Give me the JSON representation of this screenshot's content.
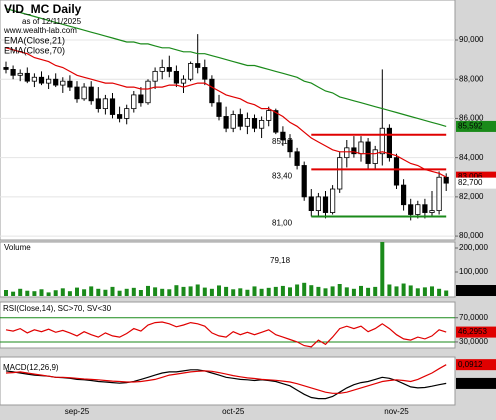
{
  "chart_data": [
    {
      "type": "candlestick",
      "title": "VID_MC Daily",
      "subtitle": "as of 12/11/2025",
      "source": "www.wealth-lab.com",
      "categories": [
        null,
        null,
        null,
        null,
        null,
        null,
        null,
        null,
        null,
        null,
        "sep-25",
        null,
        null,
        null,
        null,
        null,
        null,
        null,
        null,
        null,
        null,
        null,
        null,
        null,
        null,
        null,
        null,
        null,
        null,
        null,
        null,
        null,
        "oct-25",
        null,
        null,
        null,
        null,
        null,
        null,
        null,
        null,
        null,
        null,
        null,
        null,
        null,
        null,
        null,
        null,
        null,
        null,
        null,
        null,
        null,
        null,
        "nov-25",
        null,
        null,
        null,
        null,
        null,
        null,
        null
      ],
      "open": [
        88.6,
        88.5,
        88.2,
        88.3,
        87.9,
        88.1,
        87.8,
        88.0,
        87.7,
        87.9,
        87.6,
        87.0,
        87.6,
        87.0,
        86.5,
        87.0,
        86.2,
        86.0,
        86.5,
        87.2,
        86.8,
        87.9,
        88.4,
        88.6,
        88.4,
        87.8,
        88.0,
        88.8,
        88.6,
        88.0,
        86.8,
        86.1,
        85.5,
        86.2,
        85.6,
        86.0,
        85.5,
        85.9,
        86.4,
        85.3,
        84.9,
        84.3,
        83.6,
        82.0,
        81.3,
        82.0,
        81.2,
        82.4,
        84.0,
        84.5,
        84.2,
        84.8,
        83.7,
        84.2,
        85.5,
        84.0,
        82.6,
        81.6,
        81.1,
        81.6,
        81.2,
        81.3,
        83.0
      ],
      "high": [
        88.9,
        88.7,
        88.5,
        88.6,
        88.3,
        88.4,
        88.2,
        88.3,
        88.1,
        88.2,
        87.9,
        87.8,
        87.9,
        87.6,
        87.2,
        87.3,
        86.6,
        86.7,
        87.4,
        87.6,
        88.0,
        88.6,
        89.0,
        89.2,
        88.7,
        88.2,
        88.9,
        90.3,
        89.0,
        88.2,
        87.2,
        86.6,
        86.4,
        86.5,
        86.3,
        86.2,
        86.1,
        86.6,
        86.5,
        85.6,
        85.2,
        84.5,
        83.8,
        82.4,
        82.2,
        82.3,
        82.6,
        84.3,
        84.9,
        85.1,
        85.1,
        85.0,
        84.6,
        88.5,
        85.7,
        84.2,
        82.9,
        81.9,
        81.8,
        81.9,
        82.3,
        83.3,
        83.2
      ],
      "low": [
        88.3,
        88.0,
        87.9,
        87.8,
        87.6,
        87.7,
        87.5,
        87.6,
        87.3,
        87.4,
        86.8,
        86.9,
        86.7,
        86.3,
        86.2,
        86.0,
        85.8,
        85.7,
        86.3,
        86.6,
        86.7,
        87.5,
        88.0,
        88.1,
        87.6,
        87.3,
        87.9,
        88.3,
        87.7,
        86.6,
        85.9,
        85.3,
        85.3,
        85.4,
        85.2,
        85.3,
        85.0,
        85.6,
        85.2,
        84.6,
        84.0,
        83.4,
        81.8,
        81.0,
        81.0,
        80.9,
        81.1,
        82.2,
        83.5,
        84.0,
        83.8,
        83.4,
        83.4,
        83.6,
        83.8,
        82.4,
        81.3,
        80.8,
        80.9,
        80.9,
        81.0,
        81.1,
        82.3
      ],
      "close": [
        88.5,
        88.2,
        88.3,
        87.9,
        88.1,
        87.8,
        88.0,
        87.7,
        87.9,
        87.6,
        87.0,
        87.6,
        86.9,
        86.5,
        87.0,
        86.2,
        86.0,
        86.5,
        87.2,
        86.8,
        87.9,
        88.4,
        88.6,
        88.4,
        87.8,
        88.0,
        88.8,
        88.6,
        88.0,
        86.8,
        86.1,
        85.5,
        86.2,
        85.6,
        86.0,
        85.5,
        85.9,
        86.4,
        85.3,
        84.9,
        84.3,
        83.6,
        82.0,
        81.3,
        82.0,
        81.2,
        82.4,
        84.0,
        84.5,
        84.2,
        84.8,
        83.7,
        84.4,
        85.5,
        84.0,
        82.6,
        81.6,
        81.1,
        81.6,
        81.2,
        81.3,
        83.0,
        82.7
      ],
      "close_label": "82,700",
      "series": [
        {
          "name": "EMA(Close,21)",
          "color": "#e00000",
          "last_label": "83,006",
          "values": [
            89.6,
            89.5,
            89.4,
            89.3,
            89.1,
            89.0,
            88.9,
            88.7,
            88.6,
            88.4,
            88.2,
            88.1,
            88.0,
            87.9,
            87.8,
            87.8,
            87.7,
            87.6,
            87.6,
            87.5,
            87.5,
            87.6,
            87.6,
            87.7,
            87.7,
            87.6,
            87.7,
            87.8,
            87.8,
            87.6,
            87.4,
            87.2,
            87.1,
            87.0,
            86.8,
            86.7,
            86.5,
            86.5,
            86.3,
            86.1,
            85.8,
            85.6,
            85.3,
            85.0,
            84.8,
            84.6,
            84.4,
            84.3,
            84.3,
            84.3,
            84.2,
            84.2,
            84.2,
            84.3,
            84.2,
            84.1,
            83.9,
            83.7,
            83.6,
            83.4,
            83.3,
            83.2,
            83.006
          ]
        },
        {
          "name": "EMA(Close,70)",
          "color": "#1a8a1a",
          "last_label": "85,592",
          "values": [
            91.6,
            91.5,
            91.4,
            91.3,
            91.2,
            91.1,
            91.0,
            90.9,
            90.8,
            90.7,
            90.6,
            90.5,
            90.4,
            90.3,
            90.2,
            90.1,
            90.0,
            89.9,
            89.9,
            89.8,
            89.8,
            89.7,
            89.6,
            89.6,
            89.5,
            89.4,
            89.4,
            89.3,
            89.3,
            89.2,
            89.1,
            89.0,
            88.9,
            88.8,
            88.7,
            88.7,
            88.6,
            88.5,
            88.4,
            88.3,
            88.2,
            88.1,
            87.9,
            87.8,
            87.6,
            87.4,
            87.3,
            87.1,
            87.0,
            86.9,
            86.8,
            86.7,
            86.6,
            86.5,
            86.4,
            86.3,
            86.2,
            86.1,
            86.0,
            85.9,
            85.8,
            85.7,
            85.592
          ]
        }
      ],
      "levels": [
        {
          "value": 85.17,
          "label": "85,17",
          "color": "#e00000"
        },
        {
          "value": 83.4,
          "label": "83,40",
          "color": "#e00000"
        },
        {
          "value": 81.0,
          "label": "81,00",
          "color": "#1a8a1a"
        }
      ],
      "ylim": [
        79.8,
        92.04
      ],
      "yticks": [
        {
          "value": 80,
          "label": "80,000"
        },
        {
          "value": 82,
          "label": "82,000"
        },
        {
          "value": 84,
          "label": "84,000"
        },
        {
          "value": 86,
          "label": "86,000"
        },
        {
          "value": 88,
          "label": "88,000"
        },
        {
          "value": 90,
          "label": "90,000"
        }
      ],
      "grid": true
    },
    {
      "type": "bar",
      "title": "Volume",
      "color": "#1a8a1a",
      "annotation": "79,18",
      "last_label": "22,867",
      "values": [
        25000,
        18000,
        30000,
        22000,
        20000,
        28000,
        15000,
        24000,
        32000,
        20000,
        35000,
        28000,
        40000,
        30000,
        26000,
        38000,
        22000,
        30000,
        34000,
        25000,
        42000,
        36000,
        30000,
        28000,
        45000,
        38000,
        40000,
        48000,
        35000,
        30000,
        44000,
        38000,
        28000,
        32000,
        26000,
        40000,
        30000,
        34000,
        38000,
        42000,
        36000,
        48000,
        55000,
        45000,
        38000,
        32000,
        40000,
        50000,
        36000,
        30000,
        42000,
        34000,
        38000,
        225000,
        48000,
        40000,
        52000,
        44000,
        32000,
        36000,
        40000,
        30000,
        22867
      ],
      "ylim": [
        0,
        225000
      ],
      "yticks": [
        {
          "value": 100000,
          "label": "100,000"
        },
        {
          "value": 200000,
          "label": "200,000"
        }
      ]
    },
    {
      "type": "line",
      "title": "RSI(Close,14), SC>70, SV<30",
      "reference_color": "#1a8a1a",
      "series": [
        {
          "color": "#e00000",
          "last_label": "46,2953",
          "values": [
            50,
            48,
            52,
            45,
            50,
            47,
            51,
            46,
            49,
            45,
            40,
            47,
            42,
            38,
            45,
            40,
            38,
            44,
            52,
            48,
            58,
            62,
            63,
            60,
            55,
            58,
            62,
            60,
            56,
            45,
            40,
            38,
            47,
            42,
            46,
            42,
            46,
            50,
            42,
            38,
            34,
            30,
            24,
            22,
            33,
            26,
            38,
            52,
            56,
            52,
            56,
            47,
            52,
            60,
            52,
            42,
            35,
            33,
            38,
            35,
            40,
            50,
            46.2953
          ]
        }
      ],
      "ylim": [
        20,
        96
      ],
      "yticks": [
        {
          "value": 70,
          "label": "70,0000"
        },
        {
          "value": 30,
          "label": "30,0000"
        }
      ]
    },
    {
      "type": "line",
      "title": "MACD(12,26,9)",
      "series": [
        {
          "color": "#000000",
          "last_label": "-0,7887",
          "values": [
            -0.2,
            -0.25,
            -0.3,
            -0.35,
            -0.4,
            -0.42,
            -0.45,
            -0.5,
            -0.52,
            -0.55,
            -0.6,
            -0.62,
            -0.65,
            -0.7,
            -0.72,
            -0.75,
            -0.78,
            -0.75,
            -0.7,
            -0.6,
            -0.5,
            -0.4,
            -0.3,
            -0.25,
            -0.25,
            -0.2,
            -0.15,
            -0.15,
            -0.2,
            -0.3,
            -0.4,
            -0.5,
            -0.55,
            -0.6,
            -0.62,
            -0.65,
            -0.62,
            -0.65,
            -0.7,
            -0.8,
            -0.9,
            -1.1,
            -1.3,
            -1.45,
            -1.5,
            -1.5,
            -1.4,
            -1.2,
            -1.0,
            -0.85,
            -0.75,
            -0.7,
            -0.6,
            -0.5,
            -0.55,
            -0.65,
            -0.8,
            -0.95,
            -1.0,
            -0.98,
            -0.92,
            -0.85,
            -0.7887
          ]
        },
        {
          "color": "#e00000",
          "last_label": "0,0912",
          "values": [
            -0.3,
            -0.28,
            -0.25,
            -0.3,
            -0.35,
            -0.4,
            -0.45,
            -0.5,
            -0.5,
            -0.52,
            -0.55,
            -0.58,
            -0.6,
            -0.62,
            -0.65,
            -0.68,
            -0.7,
            -0.72,
            -0.72,
            -0.7,
            -0.65,
            -0.6,
            -0.5,
            -0.4,
            -0.35,
            -0.3,
            -0.25,
            -0.22,
            -0.2,
            -0.22,
            -0.28,
            -0.35,
            -0.42,
            -0.48,
            -0.53,
            -0.56,
            -0.6,
            -0.62,
            -0.64,
            -0.68,
            -0.72,
            -0.8,
            -0.9,
            -1.0,
            -1.1,
            -1.2,
            -1.25,
            -1.25,
            -1.2,
            -1.1,
            -1.0,
            -0.9,
            -0.8,
            -0.7,
            -0.65,
            -0.62,
            -0.65,
            -0.7,
            -0.6,
            -0.45,
            -0.3,
            -0.1,
            0.0912
          ]
        }
      ],
      "ylim": [
        -1.8,
        0.45
      ]
    }
  ]
}
